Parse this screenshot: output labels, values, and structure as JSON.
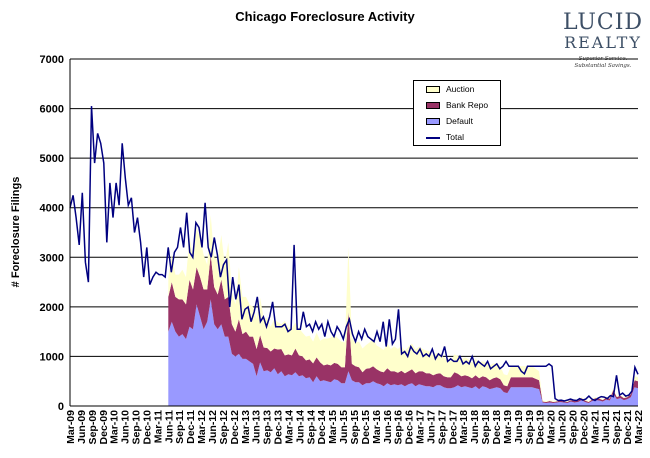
{
  "chart_data": {
    "type": "area",
    "title": "Chicago Foreclosure Activity",
    "ylabel": "# Foreclosure Filings",
    "xlabel": "",
    "ylim": [
      0,
      7000
    ],
    "yticks": [
      0,
      1000,
      2000,
      3000,
      4000,
      5000,
      6000,
      7000
    ],
    "grid": true,
    "legend_position": "top-right",
    "stacked": true,
    "x_start": "Mar-09",
    "x_end": "Mar-22",
    "xtick_labels": [
      "Mar-09",
      "Jun-09",
      "Sep-09",
      "Dec-09",
      "Mar-10",
      "Jun-10",
      "Sep-10",
      "Dec-10",
      "Mar-11",
      "Jun-11",
      "Sep-11",
      "Dec-11",
      "Mar-12",
      "Jun-12",
      "Sep-12",
      "Dec-12",
      "Mar-13",
      "Jun-13",
      "Sep-13",
      "Dec-13",
      "Mar-14",
      "Jun-14",
      "Sep-14",
      "Dec-14",
      "Mar-15",
      "Jun-15",
      "Sep-15",
      "Dec-15",
      "Mar-16",
      "Jun-16",
      "Sep-16",
      "Dec-16",
      "Mar-17",
      "Jun-17",
      "Sep-17",
      "Dec-17",
      "Mar-18",
      "Jun-18",
      "Sep-18",
      "Dec-18",
      "Mar-19",
      "Jun-19",
      "Sep-19",
      "Dec-19",
      "Mar-20",
      "Jun-20",
      "Sep-20",
      "Dec-20",
      "Mar-21",
      "Jun-21",
      "Sep-21",
      "Dec-21",
      "Mar-22"
    ],
    "series": [
      {
        "name": "Default",
        "color": "#9999ff",
        "start": "Jun-11",
        "values": [
          1500,
          1700,
          1500,
          1400,
          1450,
          1350,
          1600,
          1550,
          2050,
          1800,
          1550,
          1700,
          2150,
          1650,
          1550,
          1650,
          1400,
          1400,
          1050,
          1000,
          1050,
          950,
          950,
          900,
          850,
          600,
          880,
          700,
          720,
          680,
          760,
          640,
          700,
          600,
          640,
          620,
          680,
          600,
          620,
          560,
          580,
          480,
          600,
          500,
          520,
          500,
          480,
          540,
          520,
          460,
          460,
          700,
          520,
          480,
          480,
          420,
          460,
          460,
          500,
          460,
          440,
          400,
          460,
          420,
          440,
          420,
          440,
          400,
          440,
          460,
          400,
          440,
          420,
          400,
          400,
          380,
          420,
          420,
          380,
          360,
          360,
          380,
          420,
          380,
          400,
          380,
          360,
          400,
          340,
          400,
          380,
          340,
          360,
          380,
          360,
          280,
          260,
          380,
          380,
          380,
          380,
          380,
          380,
          380,
          360,
          340,
          70,
          60,
          70,
          60,
          70,
          80,
          70,
          60,
          90,
          70,
          80,
          120,
          80,
          60,
          100,
          120,
          110,
          90,
          130,
          110,
          250,
          140,
          160,
          120,
          140,
          180,
          380,
          360
        ]
      },
      {
        "name": "Bank Repo",
        "color": "#993366",
        "start": "Jun-11",
        "values": [
          700,
          800,
          700,
          750,
          700,
          700,
          950,
          800,
          750,
          800,
          800,
          650,
          900,
          750,
          700,
          900,
          750,
          800,
          600,
          500,
          700,
          500,
          550,
          500,
          550,
          550,
          550,
          480,
          450,
          420,
          400,
          500,
          450,
          420,
          400,
          400,
          480,
          420,
          380,
          360,
          360,
          380,
          380,
          380,
          300,
          340,
          340,
          330,
          330,
          320,
          320,
          1200,
          330,
          320,
          300,
          260,
          290,
          300,
          300,
          280,
          260,
          280,
          300,
          280,
          260,
          250,
          270,
          260,
          260,
          280,
          260,
          260,
          280,
          260,
          260,
          240,
          230,
          240,
          220,
          220,
          220,
          300,
          230,
          220,
          220,
          220,
          200,
          220,
          220,
          200,
          200,
          180,
          200,
          200,
          180,
          140,
          140,
          200,
          200,
          200,
          200,
          200,
          200,
          200,
          190,
          180,
          20,
          20,
          30,
          20,
          20,
          30,
          20,
          20,
          30,
          30,
          30,
          40,
          30,
          20,
          30,
          40,
          40,
          30,
          40,
          40,
          70,
          40,
          50,
          40,
          40,
          60,
          140,
          140
        ]
      },
      {
        "name": "Auction",
        "color": "#ffffcc",
        "start": "Jun-11",
        "values": [
          400,
          550,
          450,
          500,
          600,
          550,
          850,
          650,
          800,
          800,
          700,
          500,
          800,
          600,
          700,
          900,
          700,
          1100,
          650,
          550,
          1050,
          750,
          700,
          650,
          600,
          600,
          750,
          600,
          600,
          500,
          600,
          550,
          500,
          700,
          550,
          550,
          520,
          550,
          480,
          480,
          480,
          440,
          500,
          440,
          540,
          520,
          560,
          560,
          520,
          520,
          500,
          1300,
          520,
          480,
          520,
          480,
          480,
          520,
          560,
          480,
          480,
          450,
          500,
          450,
          500,
          480,
          500,
          450,
          500,
          520,
          480,
          500,
          450,
          460,
          440,
          400,
          420,
          400,
          380,
          360,
          320,
          360,
          360,
          340,
          360,
          340,
          320,
          340,
          320,
          300,
          300,
          300,
          300,
          280,
          260,
          220,
          220,
          220,
          220,
          220,
          220,
          220,
          220,
          220,
          200,
          180,
          20,
          20,
          20,
          20,
          20,
          20,
          20,
          20,
          20,
          20,
          20,
          20,
          20,
          20,
          20,
          20,
          20,
          20,
          20,
          20,
          40,
          20,
          20,
          20,
          20,
          40,
          80,
          80
        ]
      },
      {
        "name": "Total",
        "color": "#000080",
        "line": true,
        "start": "Mar-09",
        "values": [
          4000,
          4250,
          3800,
          3250,
          4300,
          2900,
          2500,
          6050,
          4900,
          5500,
          5300,
          4900,
          3300,
          4500,
          3800,
          4500,
          4050,
          5300,
          4600,
          4050,
          4200,
          3500,
          3800,
          3300,
          2600,
          3200,
          2450,
          2600,
          2700,
          2650,
          2650,
          2600,
          3200,
          2700,
          3100,
          3200,
          3600,
          3200,
          3900,
          3100,
          3000,
          3700,
          3600,
          3200,
          4100,
          3200,
          3000,
          3400,
          3050,
          2600,
          2850,
          2950,
          2000,
          2600,
          2150,
          2450,
          1750,
          1950,
          2000,
          1700,
          1900,
          2200,
          1700,
          1800,
          1600,
          1800,
          2100,
          1600,
          1600,
          1600,
          1650,
          1500,
          1550,
          3250,
          1550,
          1550,
          1900,
          1600,
          1650,
          1500,
          1700,
          1550,
          1650,
          1400,
          1700,
          1500,
          1400,
          1600,
          1500,
          1350,
          1600,
          1750,
          1450,
          1300,
          1500,
          1350,
          1550,
          1400,
          1350,
          1300,
          1500,
          1300,
          1700,
          1200,
          1750,
          1250,
          1350,
          1950,
          1050,
          1100,
          1000,
          1200,
          1100,
          1050,
          1150,
          1000,
          1050,
          1000,
          1150,
          950,
          1050,
          1000,
          1200,
          900,
          950,
          900,
          900,
          1000,
          850,
          900,
          850,
          1000,
          800,
          900,
          850,
          800,
          900,
          750,
          800,
          850,
          750,
          800,
          900,
          800,
          800,
          800,
          800,
          700,
          650,
          800,
          800,
          800,
          800,
          800,
          800,
          800,
          850,
          800,
          150,
          110,
          120,
          100,
          120,
          140,
          120,
          110,
          150,
          120,
          140,
          200,
          140,
          110,
          160,
          190,
          180,
          150,
          210,
          190,
          620,
          220,
          260,
          200,
          220,
          300,
          780,
          640
        ]
      }
    ]
  },
  "logo": {
    "line1": "LUCID",
    "line2": "REALTY",
    "tagline1": "Superior Service.",
    "tagline2": "Substantial Savings."
  }
}
